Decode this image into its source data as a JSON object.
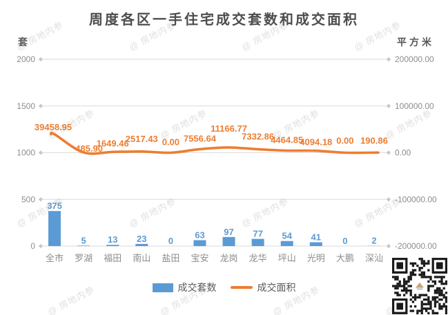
{
  "watermark": {
    "text": "@ 房地内参"
  },
  "qr_code": {
    "name": "qr-code",
    "center_icon": "house-logo-icon"
  },
  "chart_data": {
    "type": "bar",
    "subtype": "combo-bar-line-dual-axis",
    "title": "周度各区一手住宅成交套数和成交面积",
    "grid": true,
    "legend_position": "bottom",
    "categories": [
      "全市",
      "罗湖",
      "福田",
      "南山",
      "盐田",
      "宝安",
      "龙岗",
      "龙华",
      "坪山",
      "光明",
      "大鹏",
      "深汕"
    ],
    "series": [
      {
        "name": "成交套数",
        "type": "bar",
        "axis": "left",
        "color": "#5B9BD5",
        "values": [
          375,
          5,
          13,
          23,
          0,
          63,
          97,
          77,
          54,
          41,
          0,
          2
        ],
        "labels": [
          "375",
          "5",
          "13",
          "23",
          "0",
          "63",
          "97",
          "77",
          "54",
          "41",
          "0",
          "2"
        ]
      },
      {
        "name": "成交面积",
        "type": "line",
        "axis": "right",
        "color": "#ED7D31",
        "values": [
          39458.95,
          485.9,
          1649.46,
          2517.43,
          0.0,
          7556.64,
          11166.77,
          7332.86,
          4464.85,
          4094.18,
          0.0,
          190.86
        ],
        "labels": [
          "39458.95",
          "485.90",
          "1649.46",
          "2517.43",
          "0.00",
          "7556.64",
          "11166.77",
          "7332.86",
          "4464.85",
          "4094.18",
          "0.00",
          "190.86"
        ],
        "label_dx": [
          -2,
          8,
          0,
          0,
          0,
          0,
          0,
          0,
          0,
          0,
          0,
          0
        ],
        "label_dy": [
          -6,
          -1,
          -8,
          -14,
          -11,
          -11,
          -23,
          -14,
          -11,
          -8,
          -13,
          -13
        ]
      }
    ],
    "left_axis": {
      "unit": "套",
      "range": [
        0,
        2000
      ],
      "ticks": [
        "2000",
        "1500",
        "1000",
        "500",
        "0"
      ]
    },
    "right_axis": {
      "unit": "平方米",
      "range": [
        -200000,
        200000
      ],
      "ticks": [
        "200000.00",
        "100000.00",
        "0.00",
        "-100000.00",
        "-200000.00"
      ]
    },
    "colors": {
      "bar": "#5B9BD5",
      "line": "#ED7D31",
      "grid": "#DBDBDB",
      "tick_marker": "#C9C9C9",
      "axis_text": "#8C8C8C",
      "unit_text": "#595959",
      "title_text": "#4d4d4d",
      "qr_dark": "#1a1a1a"
    }
  }
}
